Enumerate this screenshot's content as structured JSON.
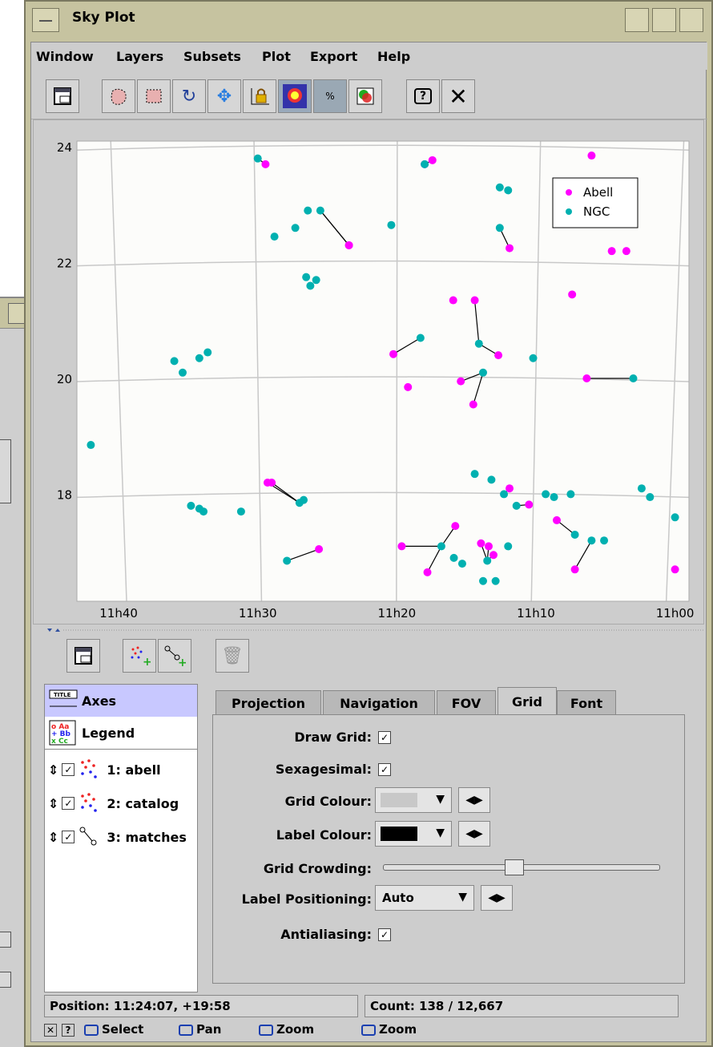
{
  "window": {
    "title": "Sky Plot"
  },
  "menubar": {
    "items": [
      {
        "id": "window",
        "label": "Window"
      },
      {
        "id": "layers",
        "label": "Layers"
      },
      {
        "id": "subsets",
        "label": "Subsets"
      },
      {
        "id": "plot",
        "label": "Plot"
      },
      {
        "id": "export",
        "label": "Export"
      },
      {
        "id": "help",
        "label": "Help"
      }
    ]
  },
  "toolbar": {
    "icons": [
      "new-window-icon",
      "blob-subset-icon",
      "box-subset-icon",
      "replot-icon",
      "navigate-icon",
      "axis-lock-icon",
      "density-icon",
      "sketch-icon",
      "colour-icon",
      "help-icon",
      "close-icon"
    ]
  },
  "chart_data": {
    "type": "scatter",
    "xlabel": "",
    "ylabel": "",
    "x_unit": "hours",
    "x_ticks": [
      "11h40",
      "11h30",
      "11h20",
      "11h10",
      "11h00"
    ],
    "y_ticks": [
      "24",
      "22",
      "20",
      "18"
    ],
    "xlim": [
      11.7167,
      10.9833
    ],
    "ylim": [
      16.15,
      24.1
    ],
    "grid": true,
    "legend_position": "top-right",
    "series": [
      {
        "name": "Abell",
        "color": "#ff00ff",
        "points": [
          [
            11.4907,
            23.7
          ],
          [
            11.3,
            23.7
          ],
          [
            11.2907,
            23.77
          ],
          [
            11.1,
            23.85
          ],
          [
            11.3907,
            22.3
          ],
          [
            11.1983,
            22.25
          ],
          [
            11.0583,
            22.2
          ],
          [
            11.3907,
            22.3
          ],
          [
            11.1233,
            21.45
          ],
          [
            11.2658,
            21.35
          ],
          [
            11.24,
            21.35
          ],
          [
            11.2117,
            20.4
          ],
          [
            11.32,
            19.85
          ],
          [
            11.2417,
            19.55
          ],
          [
            11.3375,
            20.42
          ],
          [
            11.2567,
            19.95
          ],
          [
            11.1058,
            20.0
          ],
          [
            11.0758,
            22.2
          ],
          [
            11.4833,
            18.2
          ],
          [
            11.1983,
            18.1
          ],
          [
            11.175,
            17.82
          ],
          [
            11.2633,
            17.45
          ],
          [
            11.2175,
            16.95
          ],
          [
            11.1417,
            17.55
          ],
          [
            11.2233,
            17.1
          ],
          [
            11.2325,
            17.15
          ],
          [
            11.4267,
            17.05
          ],
          [
            11.2967,
            16.65
          ],
          [
            11.12,
            16.7
          ],
          [
            11.0,
            16.7
          ],
          [
            11.4883,
            18.2
          ],
          [
            11.3275,
            17.1
          ]
        ]
      },
      {
        "name": "NGC",
        "color": "#00b0b0",
        "points": [
          [
            11.5,
            23.8
          ],
          [
            11.3,
            23.7
          ],
          [
            11.21,
            23.3
          ],
          [
            11.2,
            23.25
          ],
          [
            11.21,
            22.6
          ],
          [
            11.44,
            22.9
          ],
          [
            11.425,
            22.9
          ],
          [
            11.455,
            22.6
          ],
          [
            11.48,
            22.45
          ],
          [
            11.442,
            21.75
          ],
          [
            11.437,
            21.6
          ],
          [
            11.43,
            21.7
          ],
          [
            11.34,
            22.65
          ],
          [
            11.305,
            20.7
          ],
          [
            11.235,
            20.6
          ],
          [
            11.23,
            20.1
          ],
          [
            11.17,
            20.35
          ],
          [
            11.6,
            20.3
          ],
          [
            11.59,
            20.1
          ],
          [
            11.57,
            20.35
          ],
          [
            11.56,
            20.45
          ],
          [
            11.7,
            18.85
          ],
          [
            11.58,
            17.8
          ],
          [
            11.57,
            17.75
          ],
          [
            11.565,
            17.7
          ],
          [
            11.52,
            17.7
          ],
          [
            11.45,
            17.85
          ],
          [
            11.445,
            17.9
          ],
          [
            11.24,
            18.35
          ],
          [
            11.22,
            18.25
          ],
          [
            11.19,
            17.8
          ],
          [
            11.205,
            18.0
          ],
          [
            11.155,
            18.0
          ],
          [
            11.145,
            17.95
          ],
          [
            11.125,
            18.0
          ],
          [
            11.12,
            17.3
          ],
          [
            11.1,
            17.2
          ],
          [
            11.085,
            17.2
          ],
          [
            11.2,
            17.1
          ],
          [
            11.225,
            16.85
          ],
          [
            11.255,
            16.8
          ],
          [
            11.265,
            16.9
          ],
          [
            11.28,
            17.1
          ],
          [
            11.465,
            16.85
          ],
          [
            11.0,
            17.6
          ],
          [
            11.04,
            18.1
          ],
          [
            11.03,
            17.95
          ],
          [
            11.05,
            20.0
          ],
          [
            11.23,
            16.5
          ],
          [
            11.215,
            16.5
          ]
        ]
      }
    ]
  },
  "layers_toolbar": {
    "icons": [
      "new-window-icon",
      "add-position-layer-icon",
      "add-pair-layer-icon",
      "delete-layer-icon"
    ]
  },
  "layer_list": {
    "axes": "Axes",
    "legend": "Legend",
    "items": [
      {
        "label": "1: abell",
        "checked": true
      },
      {
        "label": "2: catalog",
        "checked": true
      },
      {
        "label": "3: matches",
        "checked": true
      }
    ]
  },
  "tabs": [
    {
      "label": "Projection"
    },
    {
      "label": "Navigation"
    },
    {
      "label": "FOV"
    },
    {
      "label": "Grid",
      "active": true
    },
    {
      "label": "Font"
    }
  ],
  "grid_form": {
    "draw_grid_label": "Draw Grid:",
    "draw_grid": true,
    "sexagesimal_label": "Sexagesimal:",
    "sexagesimal": true,
    "grid_colour_label": "Grid Colour:",
    "grid_colour": "#c8c8c8",
    "label_colour_label": "Label Colour:",
    "label_colour": "#000000",
    "grid_crowding_label": "Grid Crowding:",
    "grid_crowding": 0.47,
    "label_positioning_label": "Label Positioning:",
    "label_positioning": "Auto",
    "antialiasing_label": "Antialiasing:",
    "antialiasing": true
  },
  "status": {
    "position": "Position: 11:24:07, +19:58",
    "count": "Count: 138 / 12,667"
  },
  "mouse_hints": [
    {
      "label": "Select"
    },
    {
      "label": "Pan"
    },
    {
      "label": "Zoom"
    },
    {
      "label": "Zoom"
    }
  ]
}
